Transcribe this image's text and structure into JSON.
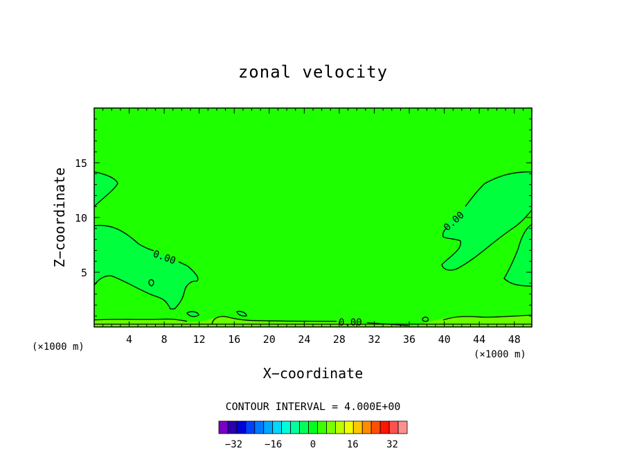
{
  "chart_data": {
    "type": "heatmap",
    "title": "zonal velocity",
    "xlabel": "X−coordinate",
    "ylabel": "Z−coordinate",
    "x_unit": "(×1000 m)",
    "y_unit": "(×1000 m)",
    "xlim": [
      0,
      50
    ],
    "ylim": [
      0,
      20
    ],
    "x_ticks": [
      "4",
      "8",
      "12",
      "16",
      "20",
      "24",
      "28",
      "32",
      "36",
      "40",
      "44",
      "48"
    ],
    "y_ticks": [
      "5",
      "10",
      "15"
    ],
    "contour_label": "0.00",
    "contour_interval_text": "CONTOUR INTERVAL = 4.000E+00",
    "colorbar": {
      "min": -36,
      "max": 36,
      "step": 4,
      "tick_labels": [
        "−32",
        "−16",
        "0",
        "16",
        "32"
      ],
      "colors": [
        "#7a00c4",
        "#2a00aa",
        "#0000d8",
        "#0040ff",
        "#0078ff",
        "#00a8ff",
        "#00d8ff",
        "#00ffd8",
        "#00ffa0",
        "#00ff5a",
        "#00ff1e",
        "#3cff00",
        "#7cff00",
        "#bcff00",
        "#f0ff00",
        "#ffc800",
        "#ff8c00",
        "#ff5000",
        "#ff1400",
        "#ff5050",
        "#ff9090"
      ]
    },
    "field_colors": {
      "background": "#1eff00",
      "weak_negative": "#00ff3c",
      "weak_positive": "#6aff00"
    }
  }
}
